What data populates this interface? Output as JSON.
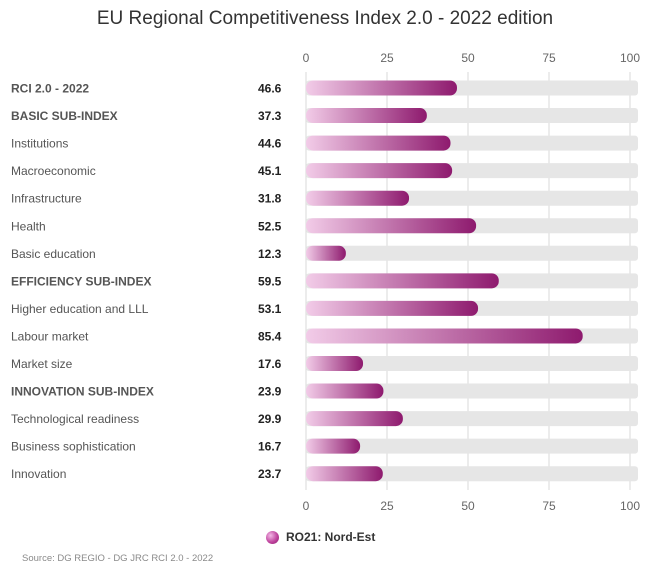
{
  "chart_data": {
    "type": "bar",
    "orientation": "horizontal",
    "title": "EU Regional Competitiveness Index 2.0 - 2022 edition",
    "categories": [
      "RCI 2.0 - 2022",
      "BASIC SUB-INDEX",
      "Institutions",
      "Macroeconomic",
      "Infrastructure",
      "Health",
      "Basic education",
      "EFFICIENCY SUB-INDEX",
      "Higher education and LLL",
      "Labour market",
      "Market size",
      "INNOVATION SUB-INDEX",
      "Technological readiness",
      "Business sophistication",
      "Innovation"
    ],
    "bold_categories": [
      "RCI 2.0 - 2022",
      "BASIC SUB-INDEX",
      "EFFICIENCY SUB-INDEX",
      "INNOVATION SUB-INDEX"
    ],
    "value_labels": [
      "46.6",
      "37.3",
      "44.6",
      "45.1",
      "31.8",
      "52.5",
      "12.3",
      "59.5",
      "53.1",
      "85.4",
      "17.6",
      "23.9",
      "29.9",
      "16.7",
      "23.7"
    ],
    "series": [
      {
        "name": "RO21: Nord-Est",
        "values": [
          46.6,
          37.3,
          44.6,
          45.1,
          31.8,
          52.5,
          12.3,
          59.5,
          53.1,
          85.4,
          17.6,
          23.9,
          29.9,
          16.7,
          23.7
        ]
      }
    ],
    "xlim": [
      0,
      100
    ],
    "xticks": [
      "0",
      "25",
      "50",
      "75",
      "100"
    ],
    "grid": true,
    "legend": "bottom-center"
  },
  "colors": {
    "bar_start": "#f2cce8",
    "bar_end": "#8e1a6e",
    "track": "#e6e6e6",
    "grid": "#d9d9d9"
  },
  "legend": {
    "label": "RO21: Nord-Est"
  },
  "source": "Source: DG REGIO - DG JRC RCI 2.0 - 2022"
}
